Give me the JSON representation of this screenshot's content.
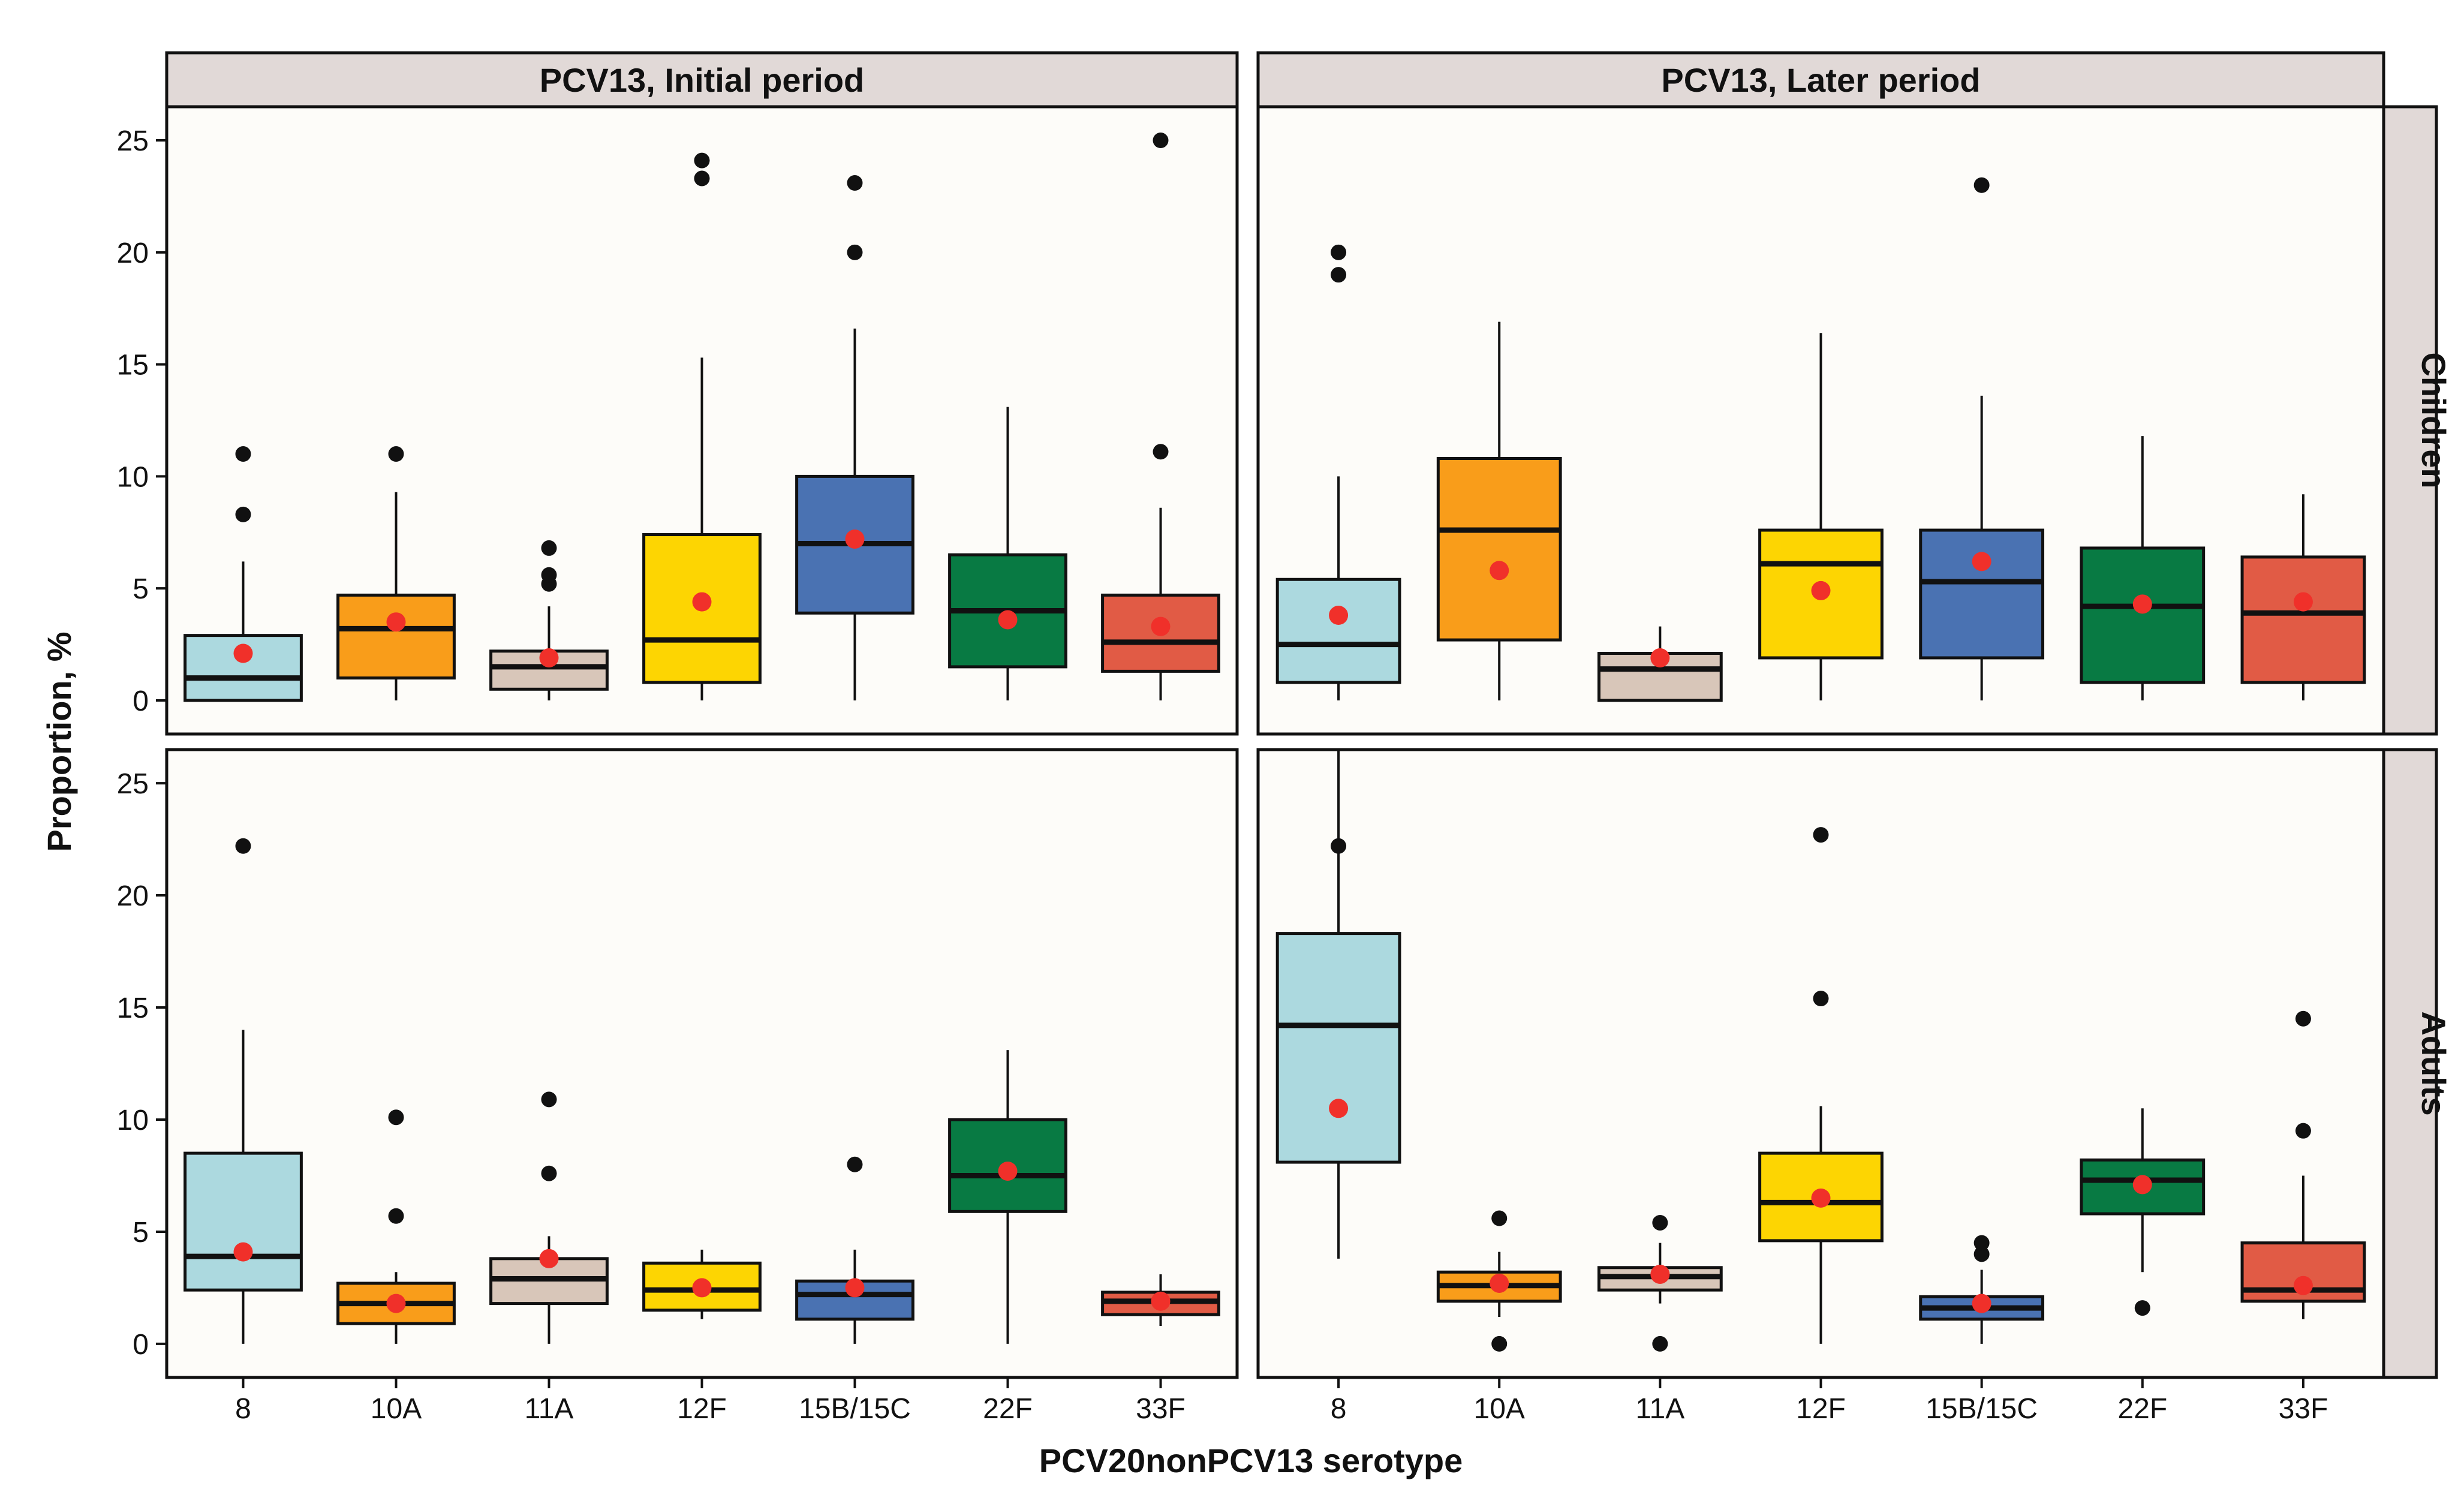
{
  "chart_data": {
    "type": "boxplot",
    "xlabel": "PCV20nonPCV13 serotype",
    "ylabel": "Proportion, %",
    "ylim": [
      -1.5,
      26.5
    ],
    "yticks": [
      0,
      5,
      10,
      15,
      20,
      25
    ],
    "categories": [
      "8",
      "10A",
      "11A",
      "12F",
      "15B/15C",
      "22F",
      "33F"
    ],
    "colors": {
      "8": "#acd9df",
      "10A": "#f99d1a",
      "11A": "#d8c6b9",
      "12F": "#fdd502",
      "15B/15C": "#4a72b2",
      "22F": "#087a43",
      "33F": "#e15b45"
    },
    "mean_color": "#f0302a",
    "columns": [
      "PCV13, Initial period",
      "PCV13, Later period"
    ],
    "rows": [
      "Children",
      "Adults"
    ],
    "panels": [
      {
        "column": "PCV13, Initial period",
        "row": "Children",
        "boxes": [
          {
            "category": "8",
            "q1": 0,
            "median": 1,
            "q3": 2.9,
            "whisker_low": 0,
            "whisker_high": 6.2,
            "mean": 2.1,
            "outliers": [
              8.3,
              11
            ]
          },
          {
            "category": "10A",
            "q1": 1,
            "median": 3.2,
            "q3": 4.7,
            "whisker_low": 0,
            "whisker_high": 9.3,
            "mean": 3.5,
            "outliers": [
              11
            ]
          },
          {
            "category": "11A",
            "q1": 0.5,
            "median": 1.5,
            "q3": 2.2,
            "whisker_low": 0,
            "whisker_high": 4.2,
            "mean": 1.9,
            "outliers": [
              5.2,
              5.6,
              6.8
            ]
          },
          {
            "category": "12F",
            "q1": 0.8,
            "median": 2.7,
            "q3": 7.4,
            "whisker_low": 0,
            "whisker_high": 15.3,
            "mean": 4.4,
            "outliers": [
              23.3,
              24.1
            ]
          },
          {
            "category": "15B/15C",
            "q1": 3.9,
            "median": 7,
            "q3": 10,
            "whisker_low": 0,
            "whisker_high": 16.6,
            "mean": 7.2,
            "outliers": [
              20,
              23.1
            ]
          },
          {
            "category": "22F",
            "q1": 1.5,
            "median": 4,
            "q3": 6.5,
            "whisker_low": 0,
            "whisker_high": 13.1,
            "mean": 3.6,
            "outliers": []
          },
          {
            "category": "33F",
            "q1": 1.3,
            "median": 2.6,
            "q3": 4.7,
            "whisker_low": 0,
            "whisker_high": 8.6,
            "mean": 3.3,
            "outliers": [
              11.1,
              25
            ]
          }
        ]
      },
      {
        "column": "PCV13, Later period",
        "row": "Children",
        "boxes": [
          {
            "category": "8",
            "q1": 0.8,
            "median": 2.5,
            "q3": 5.4,
            "whisker_low": 0,
            "whisker_high": 10,
            "mean": 3.8,
            "outliers": [
              19,
              20
            ]
          },
          {
            "category": "10A",
            "q1": 2.7,
            "median": 7.6,
            "q3": 10.8,
            "whisker_low": 0,
            "whisker_high": 16.9,
            "mean": 5.8,
            "outliers": []
          },
          {
            "category": "11A",
            "q1": 0,
            "median": 1.4,
            "q3": 2.1,
            "whisker_low": 0,
            "whisker_high": 3.3,
            "mean": 1.9,
            "outliers": []
          },
          {
            "category": "12F",
            "q1": 1.9,
            "median": 6.1,
            "q3": 7.6,
            "whisker_low": 0,
            "whisker_high": 16.4,
            "mean": 4.9,
            "outliers": []
          },
          {
            "category": "15B/15C",
            "q1": 1.9,
            "median": 5.3,
            "q3": 7.6,
            "whisker_low": 0,
            "whisker_high": 13.6,
            "mean": 6.2,
            "outliers": [
              23
            ]
          },
          {
            "category": "22F",
            "q1": 0.8,
            "median": 4.2,
            "q3": 6.8,
            "whisker_low": 0,
            "whisker_high": 11.8,
            "mean": 4.3,
            "outliers": []
          },
          {
            "category": "33F",
            "q1": 0.8,
            "median": 3.9,
            "q3": 6.4,
            "whisker_low": 0,
            "whisker_high": 9.2,
            "mean": 4.4,
            "outliers": []
          }
        ]
      },
      {
        "column": "PCV13, Initial period",
        "row": "Adults",
        "boxes": [
          {
            "category": "8",
            "q1": 2.4,
            "median": 3.9,
            "q3": 8.5,
            "whisker_low": 0,
            "whisker_high": 14,
            "mean": 4.1,
            "outliers": [
              22.2
            ]
          },
          {
            "category": "10A",
            "q1": 0.9,
            "median": 1.8,
            "q3": 2.7,
            "whisker_low": 0,
            "whisker_high": 3.2,
            "mean": 1.8,
            "outliers": [
              5.7,
              10.1
            ]
          },
          {
            "category": "11A",
            "q1": 1.8,
            "median": 2.9,
            "q3": 3.8,
            "whisker_low": 0,
            "whisker_high": 4.8,
            "mean": 3.8,
            "outliers": [
              7.6,
              10.9
            ]
          },
          {
            "category": "12F",
            "q1": 1.5,
            "median": 2.4,
            "q3": 3.6,
            "whisker_low": 1.1,
            "whisker_high": 4.2,
            "mean": 2.5,
            "outliers": []
          },
          {
            "category": "15B/15C",
            "q1": 1.1,
            "median": 2.2,
            "q3": 2.8,
            "whisker_low": 0,
            "whisker_high": 4.2,
            "mean": 2.5,
            "outliers": [
              8
            ]
          },
          {
            "category": "22F",
            "q1": 5.9,
            "median": 7.5,
            "q3": 10,
            "whisker_low": 0,
            "whisker_high": 13.1,
            "mean": 7.7,
            "outliers": []
          },
          {
            "category": "33F",
            "q1": 1.3,
            "median": 1.9,
            "q3": 2.3,
            "whisker_low": 0.8,
            "whisker_high": 3.1,
            "mean": 1.9,
            "outliers": []
          }
        ]
      },
      {
        "column": "PCV13, Later period",
        "row": "Adults",
        "boxes": [
          {
            "category": "8",
            "q1": 8.1,
            "median": 14.2,
            "q3": 18.3,
            "whisker_low": 3.8,
            "whisker_high": 26.5,
            "mean": 10.5,
            "outliers": [
              22.2
            ]
          },
          {
            "category": "10A",
            "q1": 1.9,
            "median": 2.6,
            "q3": 3.2,
            "whisker_low": 1.2,
            "whisker_high": 4.1,
            "mean": 2.7,
            "outliers": [
              0,
              5.6
            ]
          },
          {
            "category": "11A",
            "q1": 2.4,
            "median": 3,
            "q3": 3.4,
            "whisker_low": 1.8,
            "whisker_high": 4.5,
            "mean": 3.1,
            "outliers": [
              0,
              5.4
            ]
          },
          {
            "category": "12F",
            "q1": 4.6,
            "median": 6.3,
            "q3": 8.5,
            "whisker_low": 0,
            "whisker_high": 10.6,
            "mean": 6.5,
            "outliers": [
              15.4,
              22.7
            ]
          },
          {
            "category": "15B/15C",
            "q1": 1.1,
            "median": 1.6,
            "q3": 2.1,
            "whisker_low": 0,
            "whisker_high": 3.3,
            "mean": 1.8,
            "outliers": [
              4,
              4.5
            ]
          },
          {
            "category": "22F",
            "q1": 5.8,
            "median": 7.3,
            "q3": 8.2,
            "whisker_low": 3.2,
            "whisker_high": 10.5,
            "mean": 7.1,
            "outliers": [
              1.6
            ]
          },
          {
            "category": "33F",
            "q1": 1.9,
            "median": 2.4,
            "q3": 4.5,
            "whisker_low": 1.1,
            "whisker_high": 7.5,
            "mean": 2.6,
            "outliers": [
              9.5,
              14.5
            ]
          }
        ]
      }
    ]
  }
}
